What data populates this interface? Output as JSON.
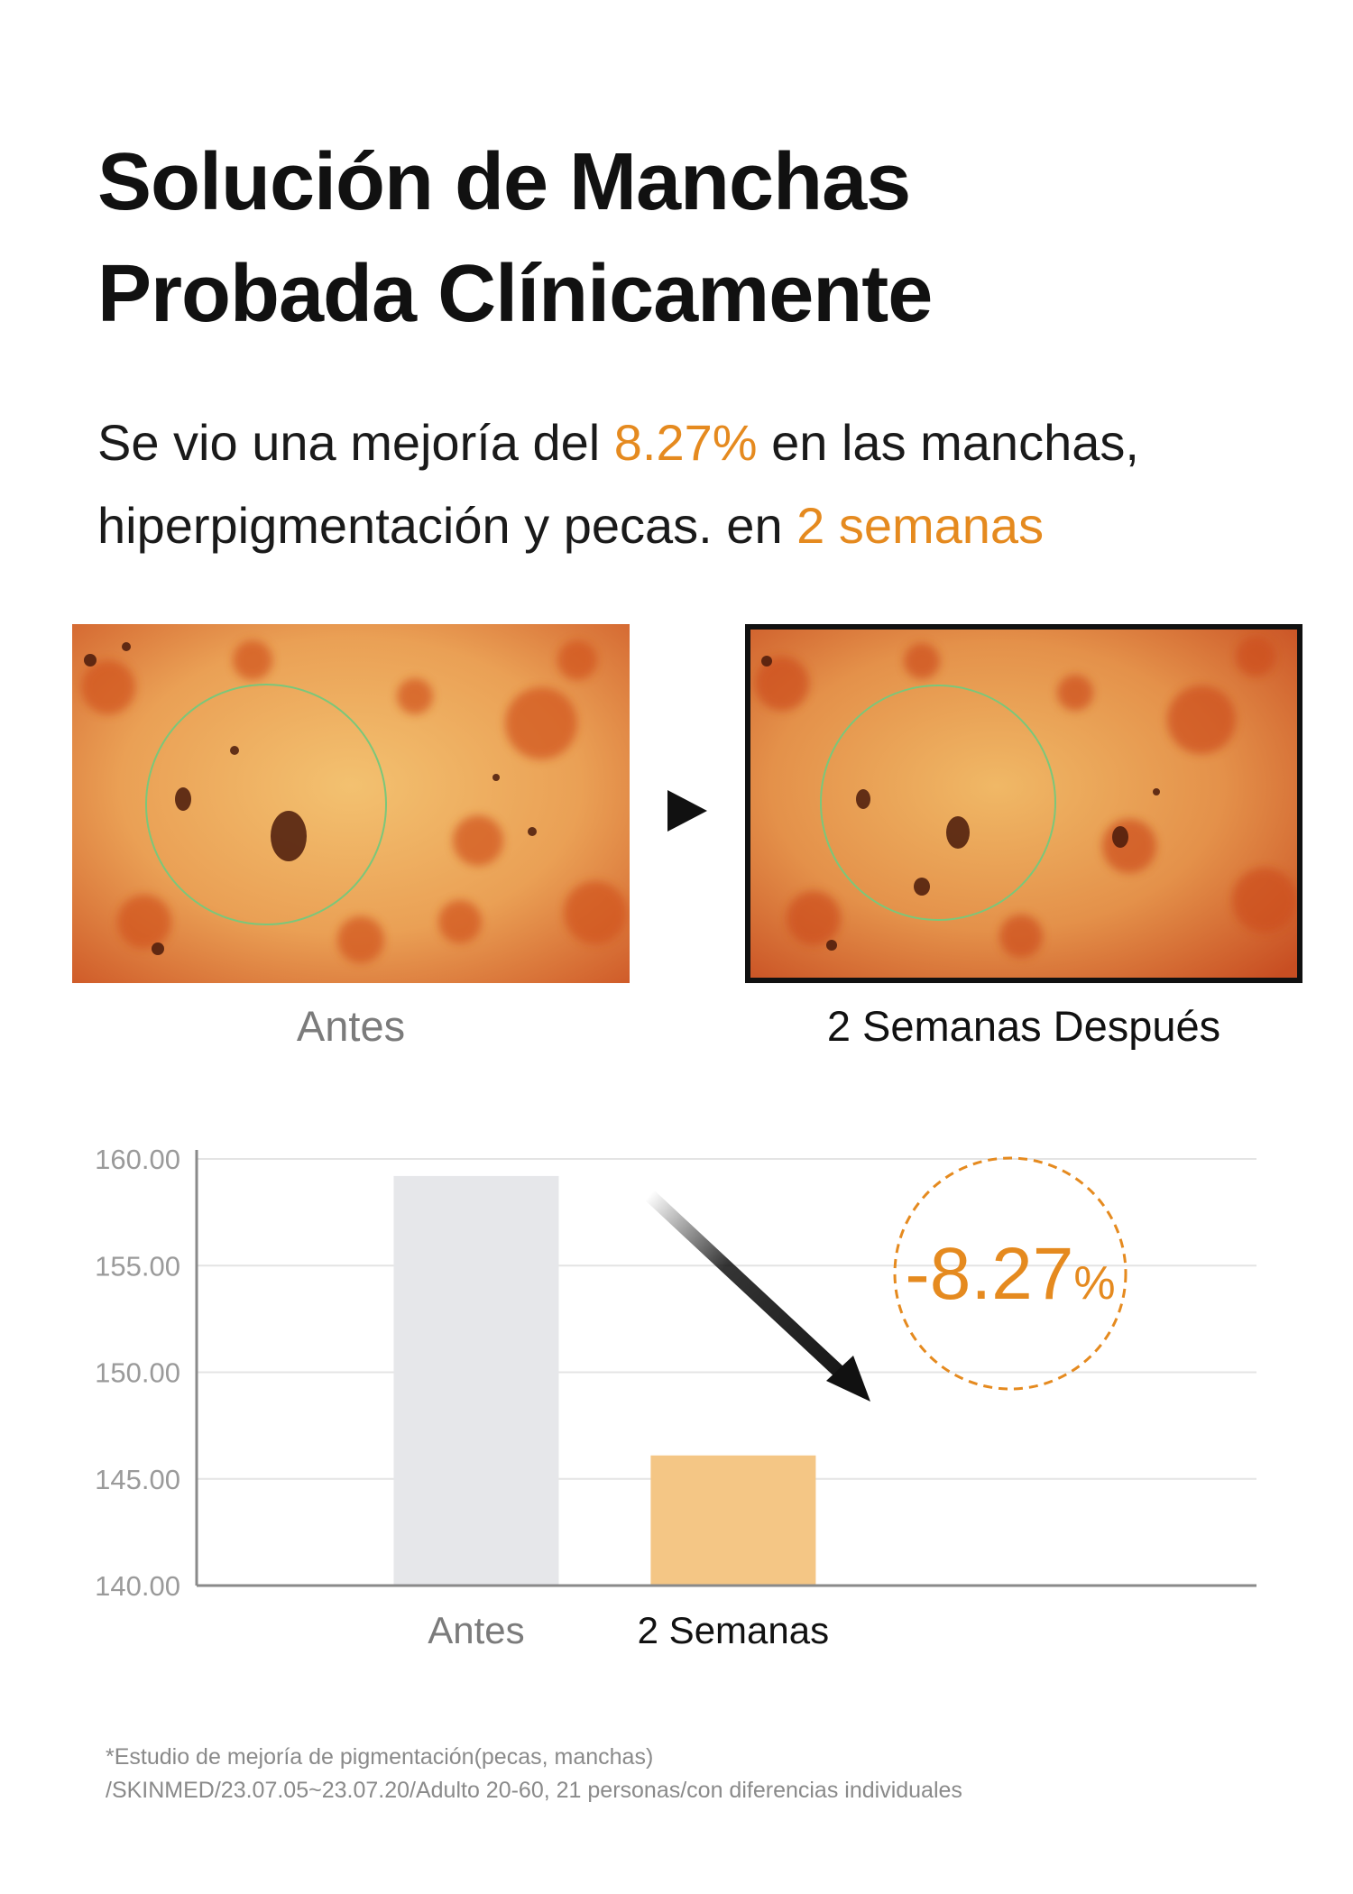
{
  "title": {
    "line1": "Solución de Manchas",
    "line2": "Probada Clínicamente"
  },
  "subtitle": {
    "line1_pre": "Se vio una mejoría del ",
    "line1_accent": "8.27%",
    "line1_post": " en las manchas,",
    "line2_pre": "hiperpigmentación y pecas. en ",
    "line2_accent": "2 semanas"
  },
  "comparison": {
    "before_caption": "Antes",
    "after_caption": "2 Semanas Después"
  },
  "chart_data": {
    "type": "bar",
    "categories": [
      "Antes",
      "2 Semanas"
    ],
    "values": [
      159.2,
      146.1
    ],
    "colors": [
      "#e6e7ea",
      "#f4c685"
    ],
    "label_colors": [
      "#7b7b7b",
      "#111111"
    ],
    "ylim": [
      140,
      160
    ],
    "yticks": [
      "140.00",
      "145.00",
      "150.00",
      "155.00",
      "160.00"
    ],
    "grid": true,
    "annotation": {
      "value": "-8.27",
      "unit": "%",
      "color": "#e58a1f"
    },
    "title": "",
    "xlabel": "",
    "ylabel": ""
  },
  "footnote": {
    "line1": "*Estudio de mejoría de pigmentación(pecas, manchas)",
    "line2": "/SKINMED/23.07.05~23.07.20/Adulto 20-60, 21 personas/con diferencias individuales"
  },
  "colors": {
    "accent": "#e58a1f",
    "text": "#111111",
    "muted": "#7b7b7b"
  }
}
